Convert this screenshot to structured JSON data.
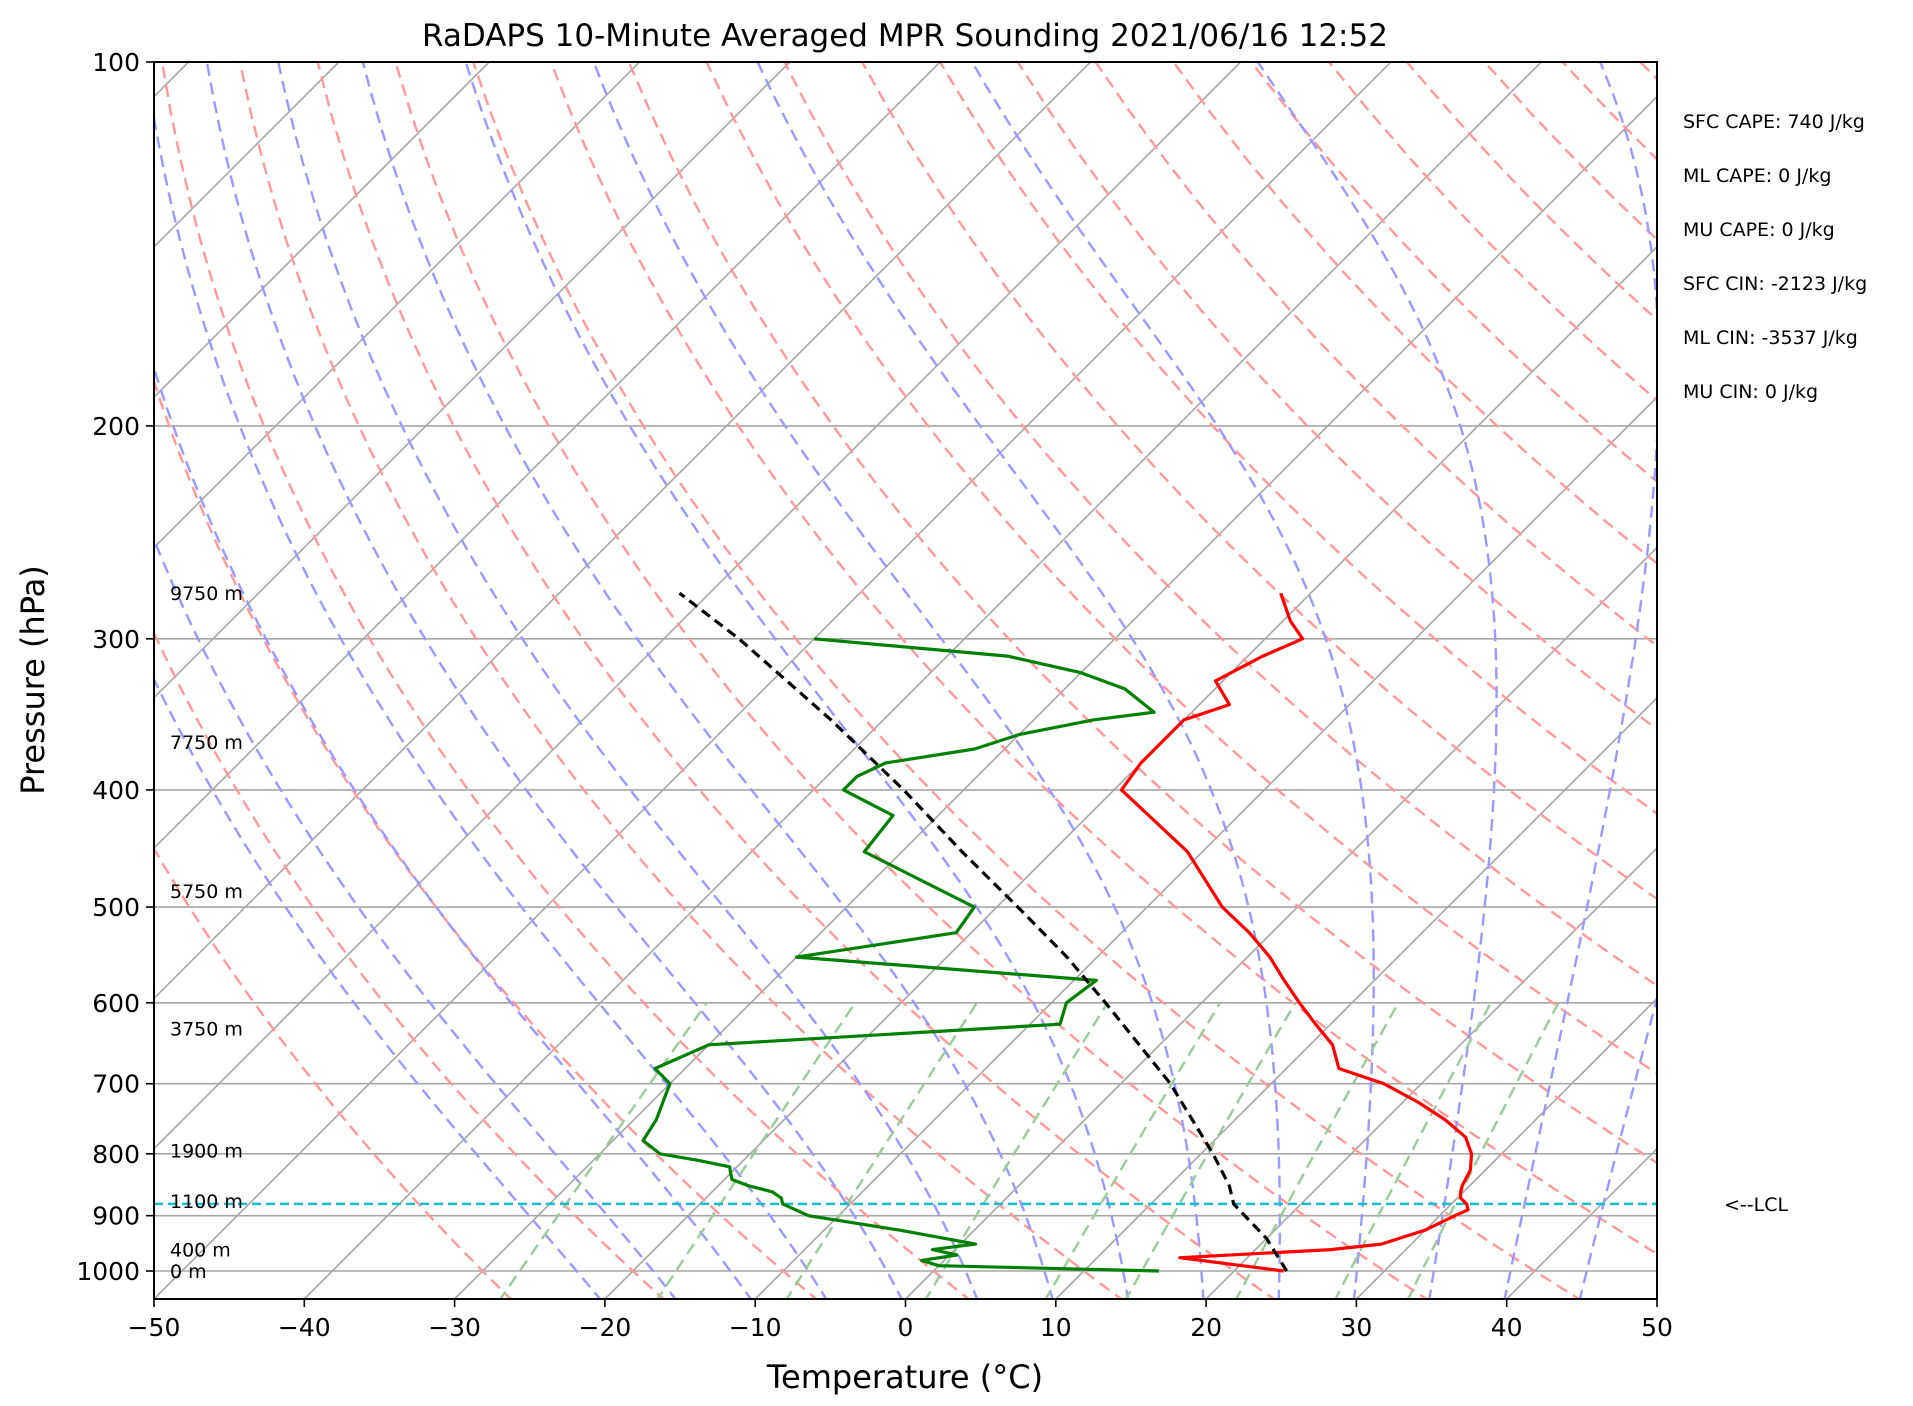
{
  "chart_data": {
    "type": "skew-t sounding",
    "title": "RaDAPS 10-Minute Averaged MPR Sounding 2021/06/16 12:52",
    "xlabel": "Temperature (°C)",
    "ylabel": "Pressure (hPa)",
    "xlim": [
      -50,
      50
    ],
    "ylim": [
      1050,
      100
    ],
    "y_scale": "log",
    "x_ticks": [
      -50,
      -40,
      -30,
      -20,
      -10,
      0,
      10,
      20,
      30,
      40,
      50
    ],
    "x_tick_labels": [
      "−50",
      "−40",
      "−30",
      "−20",
      "−10",
      "0",
      "10",
      "20",
      "30",
      "40",
      "50"
    ],
    "y_ticks": [
      100,
      200,
      300,
      400,
      500,
      600,
      700,
      800,
      900,
      1000
    ],
    "y_tick_labels": [
      "100",
      "200",
      "300",
      "400",
      "500",
      "600",
      "700",
      "800",
      "900",
      "1000"
    ],
    "grid": true,
    "series": [
      {
        "role": "temperature",
        "color": "#ff0000",
        "pressure": [
          1000,
          975,
          960,
          950,
          925,
          900,
          890,
          880,
          870,
          860,
          850,
          825,
          800,
          775,
          750,
          725,
          700,
          680,
          650,
          625,
          600,
          575,
          550,
          525,
          500,
          450,
          400,
          380,
          370,
          350,
          340,
          325,
          310,
          300,
          290,
          275
        ],
        "values": [
          23.3,
          15.5,
          25.0,
          28.0,
          30.0,
          31.0,
          31.5,
          31.0,
          30.2,
          29.8,
          29.5,
          29.0,
          28.0,
          26.5,
          24.0,
          21.0,
          17.5,
          13.5,
          11.5,
          9.0,
          6.5,
          4.0,
          1.5,
          -1.5,
          -5.0,
          -11.0,
          -19.5,
          -20.0,
          -20.0,
          -20.0,
          -18.0,
          -20.5,
          -19.0,
          -17.5,
          -19.5,
          -22.0
        ]
      },
      {
        "role": "dewpoint",
        "color": "#008000",
        "pressure": [
          1000,
          990,
          980,
          970,
          960,
          950,
          925,
          900,
          880,
          870,
          860,
          850,
          840,
          830,
          820,
          810,
          800,
          780,
          750,
          700,
          680,
          650,
          625,
          600,
          575,
          550,
          525,
          500,
          450,
          420,
          400,
          390,
          380,
          370,
          360,
          350,
          345,
          330,
          320,
          310,
          300
        ],
        "values": [
          15.0,
          0.0,
          -1.5,
          0.5,
          -1.5,
          1.0,
          -5.0,
          -12.0,
          -14.5,
          -15.0,
          -16.0,
          -18.0,
          -19.5,
          -20.0,
          -20.5,
          -23.0,
          -26.0,
          -28.0,
          -28.5,
          -30.0,
          -32.0,
          -30.0,
          -8.0,
          -9.0,
          -8.5,
          -30.0,
          -21.0,
          -21.5,
          -32.5,
          -33.0,
          -38.0,
          -38.0,
          -37.0,
          -32.0,
          -30.0,
          -26.0,
          -22.5,
          -26.0,
          -30.0,
          -36.0,
          -50.0
        ]
      },
      {
        "role": "parcel",
        "color": "#000000",
        "pressure": [
          1000,
          940,
          880,
          850,
          800,
          700,
          600,
          550,
          500,
          450,
          400,
          350,
          300,
          275
        ],
        "values": [
          23.5,
          20.0,
          15.5,
          14.0,
          10.8,
          3.3,
          -6.4,
          -12.0,
          -18.6,
          -26.0,
          -34.0,
          -43.5,
          -55.0,
          -62.0
        ]
      }
    ],
    "lcl_pressure": 880,
    "lcl_label": "<--LCL",
    "height_labels": [
      {
        "label": "9750 m",
        "pressure": 275
      },
      {
        "label": "7750 m",
        "pressure": 365
      },
      {
        "label": "5750 m",
        "pressure": 485
      },
      {
        "label": "3750 m",
        "pressure": 630
      },
      {
        "label": "1900 m",
        "pressure": 795
      },
      {
        "label": "1100 m",
        "pressure": 875
      },
      {
        "label": "400 m",
        "pressure": 960
      },
      {
        "label": "0 m",
        "pressure": 1000
      }
    ],
    "stats": [
      "SFC CAPE: 740 J/kg",
      "ML CAPE: 0 J/kg",
      "MU CAPE: 0 J/kg",
      "SFC CIN: -2123 J/kg",
      "ML CIN: -3537 J/kg",
      "MU CIN: 0 J/kg"
    ],
    "colors": {
      "isotherm": "#a6a6a6",
      "dry_adiabat": "#ff9999",
      "moist_adiabat": "#9999ff",
      "mixing_ratio": "#99cc99",
      "lcl_line": "#17becf"
    }
  }
}
